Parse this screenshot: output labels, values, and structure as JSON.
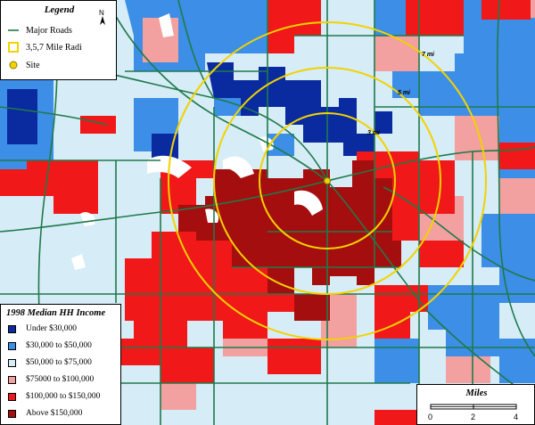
{
  "legend": {
    "title": "Legend",
    "north_label": "N",
    "items": [
      {
        "label": "Major Roads",
        "symbol": "line",
        "color": "#1f7a4a"
      },
      {
        "label": "3,5,7 Mile Radi",
        "symbol": "square-outline",
        "color": "#f2d200"
      },
      {
        "label": "Site",
        "symbol": "dot",
        "color": "#f2d200"
      }
    ]
  },
  "rings": [
    {
      "label": "3 mi",
      "miles": 3
    },
    {
      "label": "5 mi",
      "miles": 5
    },
    {
      "label": "7 mi",
      "miles": 7
    }
  ],
  "income_legend": {
    "title": "1998 Median HH Income",
    "classes": [
      {
        "label": "Under $30,000",
        "color": "#0a2aa0"
      },
      {
        "label": "$30,000 to $50,000",
        "color": "#3d8ee6"
      },
      {
        "label": "$50,000 to $75,000",
        "color": "#d6ecf7"
      },
      {
        "label": "$75000 to $100,000",
        "color": "#f2a0a0"
      },
      {
        "label": "$100,000 to $150,000",
        "color": "#f01818"
      },
      {
        "label": "Above $150,000",
        "color": "#a50e0e"
      }
    ]
  },
  "scale_bar": {
    "title": "Miles",
    "ticks": [
      "0",
      "2",
      "4"
    ]
  }
}
